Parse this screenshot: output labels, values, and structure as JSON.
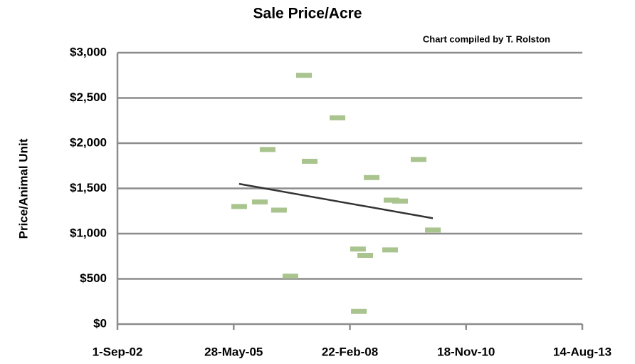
{
  "chart_data": {
    "type": "scatter",
    "title": "Sale Price/Acre",
    "subtitle": "Chart compiled by T. Rolston",
    "y_label": "Price/Animal Unit",
    "xlim": [
      37500,
      41500
    ],
    "xticks": [
      {
        "value": 37500,
        "label": "1-Sep-02"
      },
      {
        "value": 38500,
        "label": "28-May-05"
      },
      {
        "value": 39500,
        "label": "22-Feb-08"
      },
      {
        "value": 40500,
        "label": "18-Nov-10"
      },
      {
        "value": 41500,
        "label": "14-Aug-13"
      }
    ],
    "ylim": [
      0,
      3000
    ],
    "yticks": [
      {
        "value": 0,
        "label": "$0"
      },
      {
        "value": 500,
        "label": "$500"
      },
      {
        "value": 1000,
        "label": "$1,000"
      },
      {
        "value": 1500,
        "label": "$1,500"
      },
      {
        "value": 2000,
        "label": "$2,000"
      },
      {
        "value": 2500,
        "label": "$2,500"
      },
      {
        "value": 3000,
        "label": "$3,000"
      }
    ],
    "grid": true,
    "series": [
      {
        "color": "#a9c48e",
        "x": [
          38547,
          38725,
          38792,
          38890,
          38988,
          39105,
          39154,
          39393,
          39570,
          39577,
          39632,
          39687,
          39846,
          39858,
          39932,
          40091,
          40214
        ],
        "values": [
          1300,
          1350,
          1930,
          1260,
          530,
          2750,
          1800,
          2280,
          830,
          140,
          760,
          1620,
          820,
          1370,
          1360,
          1820,
          1040
        ]
      }
    ],
    "trendline": {
      "color": "#333333",
      "x": [
        38547,
        40214
      ],
      "values": [
        1550,
        1170
      ]
    }
  }
}
